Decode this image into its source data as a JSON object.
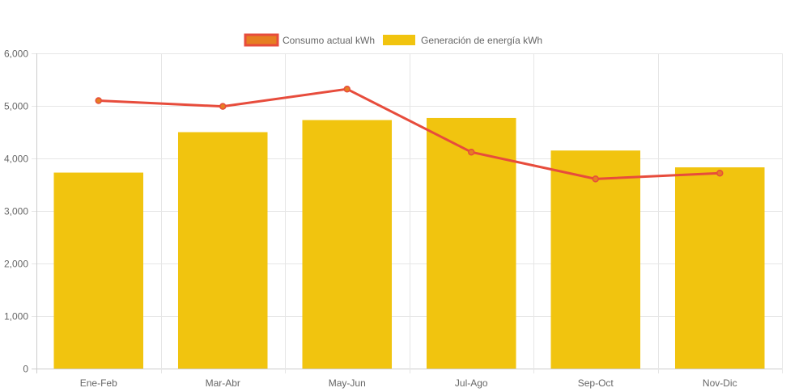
{
  "chart_data": {
    "type": "bar",
    "categories": [
      "Ene-Feb",
      "Mar-Abr",
      "May-Jun",
      "Jul-Ago",
      "Sep-Oct",
      "Nov-Dic"
    ],
    "series": [
      {
        "name": "Consumo actual kWh",
        "type": "line",
        "values": [
          5100,
          4990,
          5320,
          4120,
          3610,
          3720
        ],
        "color": "#e74c3c",
        "fill_color": "#e67e22"
      },
      {
        "name": "Generación de energía kWh",
        "type": "bar",
        "values": [
          3730,
          4500,
          4730,
          4770,
          4150,
          3830
        ],
        "color": "#f1c40f"
      }
    ],
    "ylim": [
      0,
      6000
    ],
    "yticks": [
      0,
      1000,
      2000,
      3000,
      4000,
      5000,
      6000
    ],
    "ytick_labels": [
      "0",
      "1,000",
      "2,000",
      "3,000",
      "4,000",
      "5,000",
      "6,000"
    ],
    "grid": true,
    "legend_position": "top-center"
  }
}
